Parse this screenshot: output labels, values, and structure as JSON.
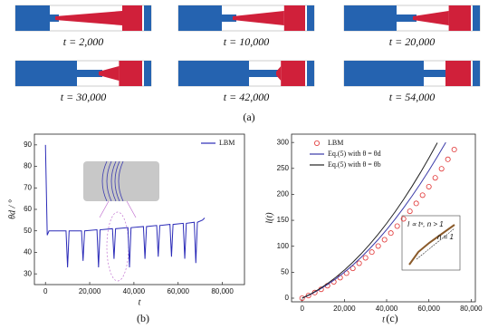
{
  "panel_a": {
    "snapshots": [
      "t = 2,000",
      "t = 10,000",
      "t = 20,000",
      "t = 30,000",
      "t = 42,000",
      "t = 54,000"
    ],
    "caption": "(a)"
  },
  "chart_data": [
    {
      "type": "line",
      "caption": "(b)",
      "x_label": "t",
      "y_label": "θd / °",
      "xlim": [
        -5000,
        90000
      ],
      "ylim": [
        25,
        95
      ],
      "xticks": [
        0,
        {
          "value": 20000,
          "label": "20,000"
        },
        {
          "value": 40000,
          "label": "40,000"
        },
        {
          "value": 60000,
          "label": "60,000"
        },
        {
          "value": 80000,
          "label": "80,000"
        }
      ],
      "yticks": [
        30,
        40,
        50,
        60,
        70,
        80,
        90
      ],
      "legend": "upper right",
      "series": [
        {
          "name": "LBM",
          "color": "#2b2bb8",
          "mode": "line",
          "x": [
            0,
            800,
            1600,
            9300,
            10000,
            10700,
            16300,
            17000,
            17700,
            23300,
            24000,
            24700,
            30300,
            31000,
            31700,
            37300,
            38000,
            38700,
            44300,
            45000,
            45700,
            50300,
            51000,
            51700,
            56300,
            57000,
            57700,
            62300,
            63000,
            63700,
            67300,
            68000,
            68700,
            71000,
            72000
          ],
          "values": [
            90,
            48,
            50,
            50,
            33,
            50,
            50,
            36,
            50,
            50.5,
            33,
            50.5,
            51,
            37,
            51,
            51.5,
            33,
            51.5,
            52,
            37,
            52,
            52.5,
            38,
            52.5,
            53,
            38,
            53,
            53.5,
            37,
            53.5,
            54,
            35,
            54,
            55,
            56
          ]
        }
      ]
    },
    {
      "type": "line",
      "caption": "(c)",
      "x_label": "t",
      "y_label": "l(t)",
      "xlim": [
        -5000,
        82000
      ],
      "ylim": [
        -7,
        316
      ],
      "xticks": [
        0,
        {
          "value": 20000,
          "label": "20,000"
        },
        {
          "value": 40000,
          "label": "40,000"
        },
        {
          "value": 60000,
          "label": "60,000"
        },
        {
          "value": 80000,
          "label": "80,000"
        }
      ],
      "yticks": [
        0,
        50,
        100,
        150,
        200,
        250,
        300
      ],
      "legend": "upper left",
      "inset_annotations": [
        "l ∝ tⁿ, n > 1",
        "n = 1"
      ],
      "series": [
        {
          "name": "LBM",
          "color": "#e03030",
          "mode": "markers",
          "x": [
            0,
            3000,
            6000,
            9000,
            12000,
            15000,
            18000,
            21000,
            24000,
            27000,
            30000,
            33000,
            36000,
            39000,
            42000,
            45000,
            48000,
            51000,
            54000,
            57000,
            60000,
            63000,
            66000,
            69000,
            72000
          ],
          "values": [
            0,
            5.1,
            10.8,
            17.1,
            24.0,
            31.4,
            39.5,
            48.2,
            57.4,
            67.3,
            77.7,
            88.7,
            100.4,
            112.6,
            125.4,
            138.8,
            152.8,
            167.4,
            182.6,
            198.4,
            214.8,
            231.8,
            249.3,
            267.5,
            286.3
          ]
        },
        {
          "name": "Eq.(5) with θ = θd",
          "color": "#3a3aa8",
          "mode": "line",
          "x": [
            0,
            4000,
            8000,
            12000,
            16000,
            20000,
            24000,
            28000,
            32000,
            36000,
            40000,
            44000,
            48000,
            52000,
            56000,
            60000,
            64000,
            68000
          ],
          "values": [
            0,
            7.4,
            16.2,
            26.2,
            37.4,
            50,
            63.8,
            79.0,
            95.4,
            113.0,
            132,
            152.2,
            173.8,
            196.6,
            220.6,
            246,
            272.6,
            300
          ]
        },
        {
          "name": "Eq.(5) with θ = θb",
          "color": "#222222",
          "mode": "line",
          "x": [
            0,
            4000,
            8000,
            12000,
            16000,
            20000,
            24000,
            28000,
            32000,
            36000,
            40000,
            44000,
            48000,
            52000,
            56000,
            60000,
            64000
          ],
          "values": [
            0,
            7.9,
            17.3,
            28.1,
            40.3,
            54,
            69.1,
            85.7,
            103.7,
            123.1,
            144,
            166.3,
            190.1,
            215.3,
            241.9,
            270,
            299.5
          ]
        }
      ]
    }
  ]
}
